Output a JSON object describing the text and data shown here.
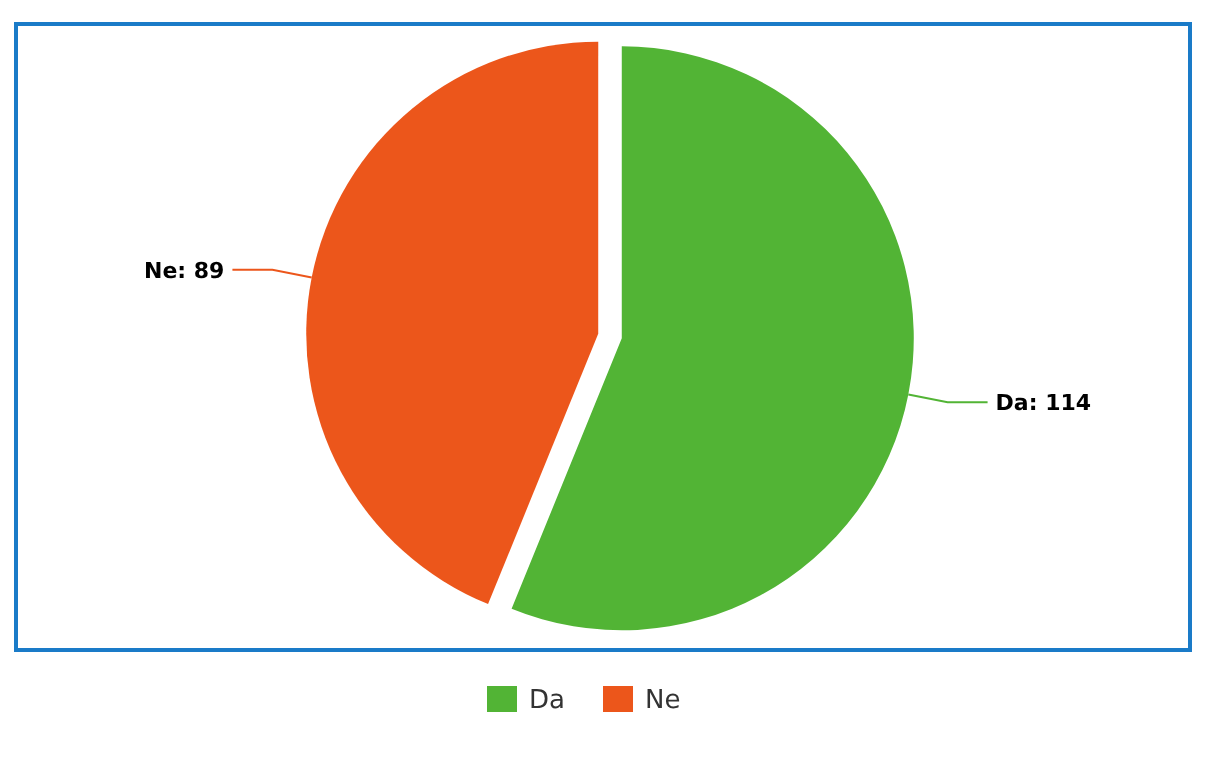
{
  "chart_data": {
    "type": "pie",
    "categories": [
      "Da",
      "Ne"
    ],
    "values": [
      114,
      89
    ],
    "value_labels": [
      "Da: 114",
      "Ne: 89"
    ],
    "colors": [
      "#52b435",
      "#ec561b"
    ],
    "legend": "bottom"
  }
}
